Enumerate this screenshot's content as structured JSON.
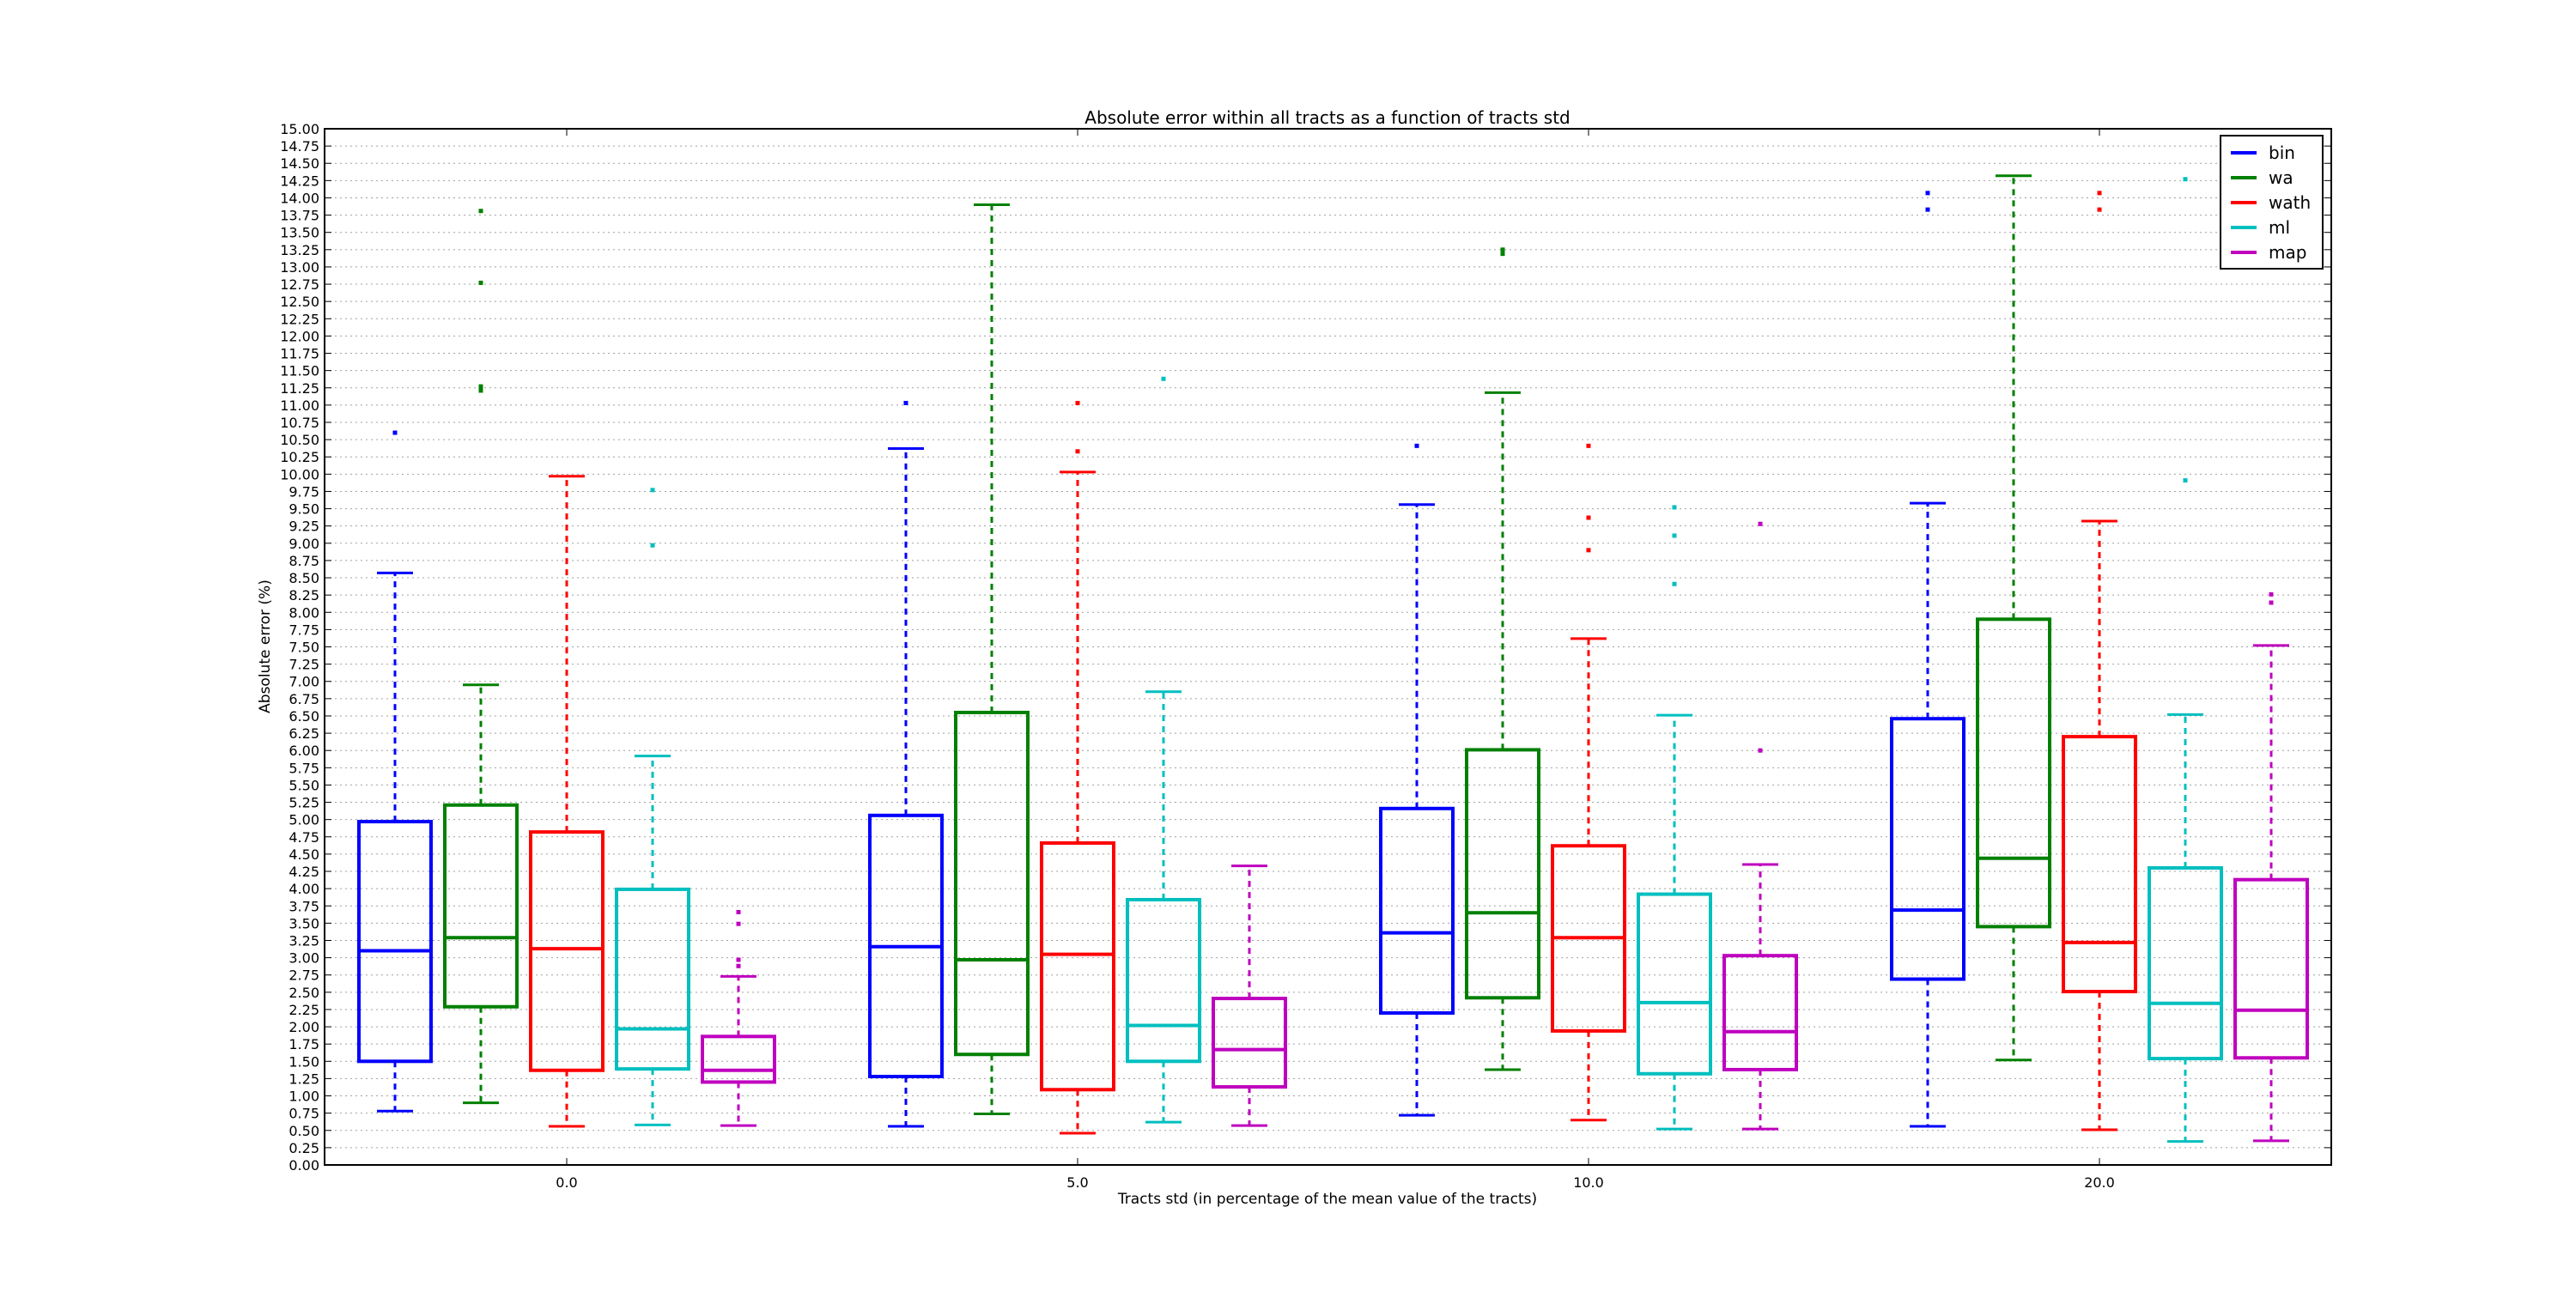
{
  "chart_data": {
    "type": "box",
    "title": "Absolute error within all tracts as a function of tracts std",
    "xlabel": "Tracts std (in percentage of the mean value of the tracts)",
    "ylabel": "Absolute error (%)",
    "ylim": [
      0,
      15
    ],
    "y_tick_step": 0.25,
    "grid": "horizontal dotted",
    "legend_position": "top-right",
    "categories": [
      "0.0",
      "5.0",
      "10.0",
      "20.0"
    ],
    "series": [
      {
        "name": "bin",
        "color": "#0000ff",
        "boxes": [
          {
            "whisker_low": 0.78,
            "q1": 1.5,
            "median": 3.1,
            "q3": 4.97,
            "whisker_high": 8.57,
            "outliers": [
              10.6
            ]
          },
          {
            "whisker_low": 0.56,
            "q1": 1.28,
            "median": 3.16,
            "q3": 5.06,
            "whisker_high": 10.37,
            "outliers": [
              11.03
            ]
          },
          {
            "whisker_low": 0.72,
            "q1": 2.2,
            "median": 3.36,
            "q3": 5.16,
            "whisker_high": 9.56,
            "outliers": [
              10.41
            ]
          },
          {
            "whisker_low": 0.56,
            "q1": 2.69,
            "median": 3.69,
            "q3": 6.46,
            "whisker_high": 9.58,
            "outliers": [
              13.83,
              14.07
            ]
          }
        ]
      },
      {
        "name": "wa",
        "color": "#008000",
        "boxes": [
          {
            "whisker_low": 0.9,
            "q1": 2.29,
            "median": 3.29,
            "q3": 5.21,
            "whisker_high": 6.95,
            "outliers": [
              11.21,
              11.27,
              12.77,
              13.81
            ]
          },
          {
            "whisker_low": 0.74,
            "q1": 1.6,
            "median": 2.97,
            "q3": 6.55,
            "whisker_high": 13.9,
            "outliers": []
          },
          {
            "whisker_low": 1.38,
            "q1": 2.42,
            "median": 3.65,
            "q3": 6.01,
            "whisker_high": 11.18,
            "outliers": [
              13.19,
              13.25
            ]
          },
          {
            "whisker_low": 1.52,
            "q1": 3.45,
            "median": 4.44,
            "q3": 7.9,
            "whisker_high": 14.32,
            "outliers": []
          }
        ]
      },
      {
        "name": "wath",
        "color": "#ff0000",
        "boxes": [
          {
            "whisker_low": 0.56,
            "q1": 1.37,
            "median": 3.13,
            "q3": 4.82,
            "whisker_high": 9.97,
            "outliers": []
          },
          {
            "whisker_low": 0.46,
            "q1": 1.09,
            "median": 3.05,
            "q3": 4.66,
            "whisker_high": 10.03,
            "outliers": [
              10.33,
              11.03
            ]
          },
          {
            "whisker_low": 0.65,
            "q1": 1.94,
            "median": 3.29,
            "q3": 4.62,
            "whisker_high": 7.62,
            "outliers": [
              8.9,
              9.37,
              10.41
            ]
          },
          {
            "whisker_low": 0.51,
            "q1": 2.51,
            "median": 3.22,
            "q3": 6.2,
            "whisker_high": 9.32,
            "outliers": [
              13.83,
              14.07
            ]
          }
        ]
      },
      {
        "name": "ml",
        "color": "#00bfbf",
        "boxes": [
          {
            "whisker_low": 0.58,
            "q1": 1.39,
            "median": 1.97,
            "q3": 3.99,
            "whisker_high": 5.92,
            "outliers": [
              8.97,
              9.77
            ]
          },
          {
            "whisker_low": 0.62,
            "q1": 1.5,
            "median": 2.02,
            "q3": 3.84,
            "whisker_high": 6.85,
            "outliers": [
              11.38
            ]
          },
          {
            "whisker_low": 0.52,
            "q1": 1.32,
            "median": 2.35,
            "q3": 3.92,
            "whisker_high": 6.51,
            "outliers": [
              8.41,
              9.11,
              9.52
            ]
          },
          {
            "whisker_low": 0.34,
            "q1": 1.54,
            "median": 2.34,
            "q3": 4.3,
            "whisker_high": 6.52,
            "outliers": [
              9.91,
              14.27
            ]
          }
        ]
      },
      {
        "name": "map",
        "color": "#bf00bf",
        "boxes": [
          {
            "whisker_low": 0.57,
            "q1": 1.2,
            "median": 1.37,
            "q3": 1.86,
            "whisker_high": 2.73,
            "outliers": [
              2.88,
              2.97,
              3.49,
              3.66
            ]
          },
          {
            "whisker_low": 0.57,
            "q1": 1.13,
            "median": 1.67,
            "q3": 2.41,
            "whisker_high": 4.33,
            "outliers": []
          },
          {
            "whisker_low": 0.52,
            "q1": 1.38,
            "median": 1.93,
            "q3": 3.03,
            "whisker_high": 4.35,
            "outliers": [
              6.0,
              9.28
            ]
          },
          {
            "whisker_low": 0.35,
            "q1": 1.55,
            "median": 2.24,
            "q3": 4.13,
            "whisker_high": 7.52,
            "outliers": [
              8.14,
              8.26
            ]
          }
        ]
      }
    ]
  }
}
